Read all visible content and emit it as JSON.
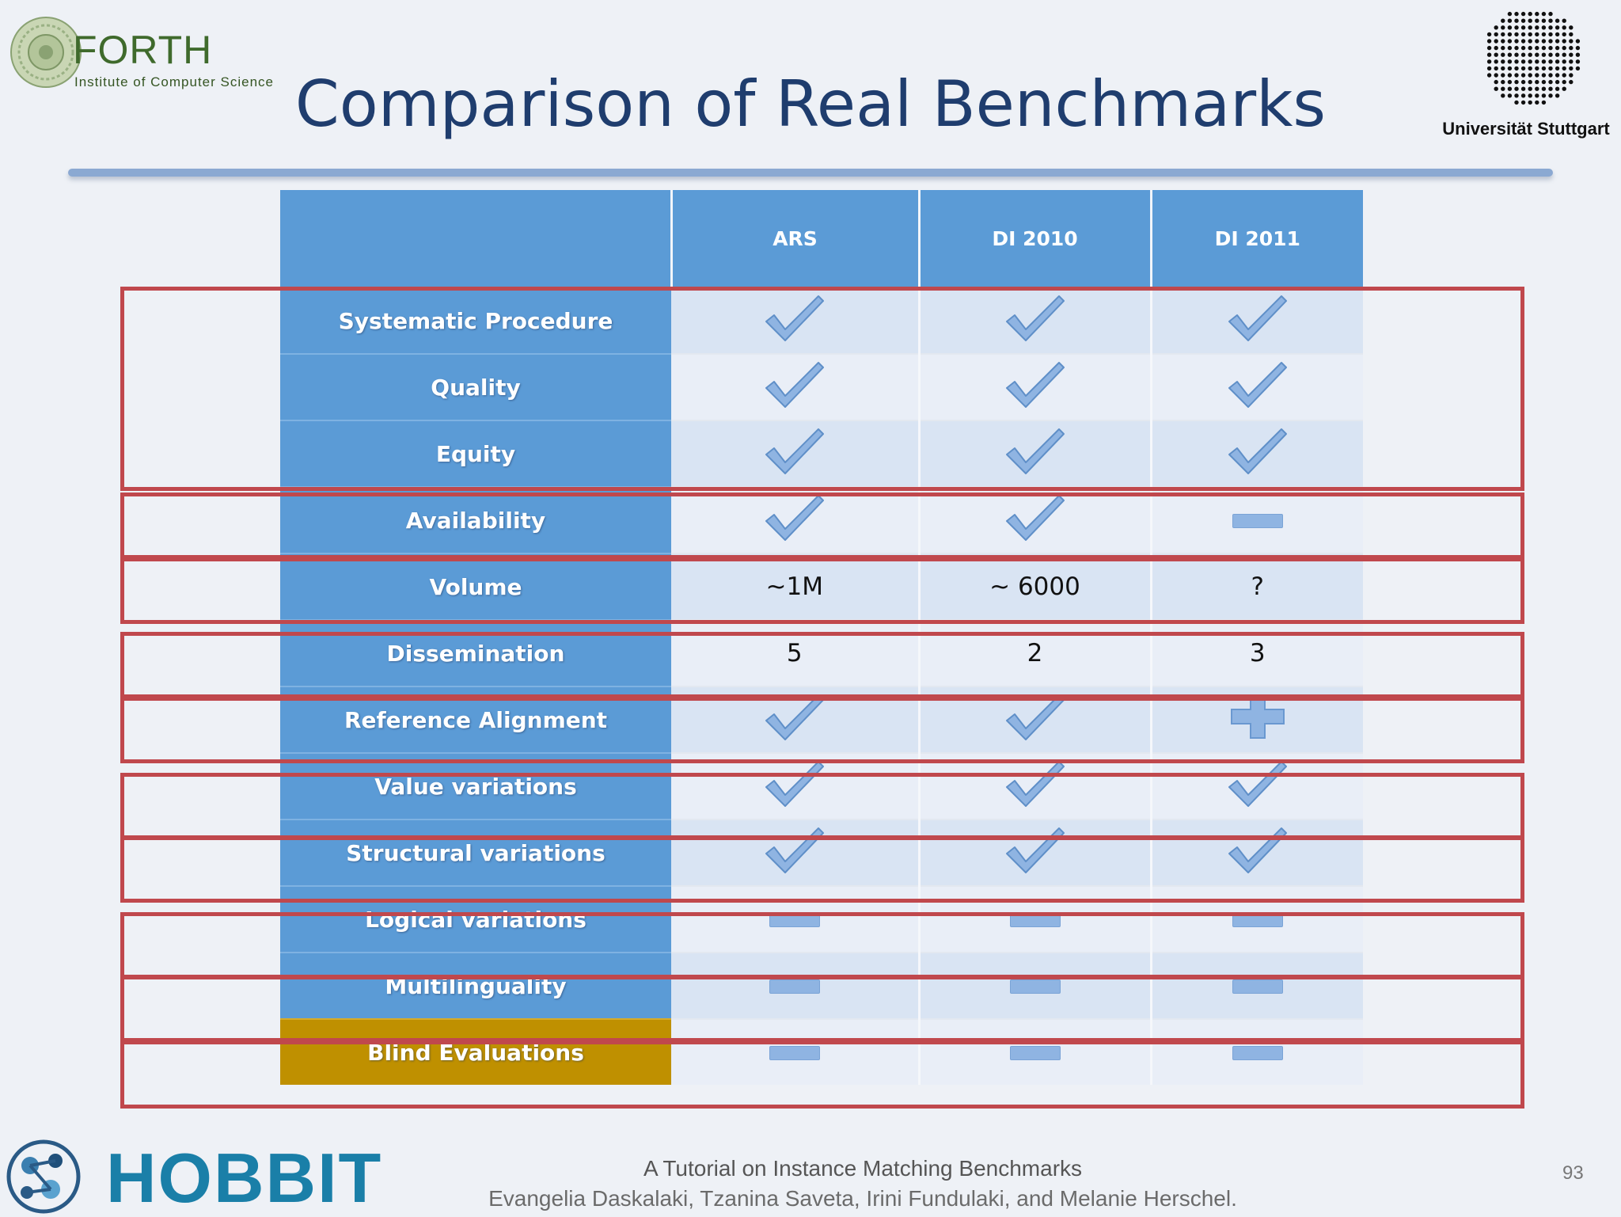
{
  "header": {
    "forth_logo": {
      "name": "FORTH",
      "subtitle": "Institute of Computer Science"
    },
    "title": "Comparison of Real Benchmarks",
    "uni_logo": {
      "name": "Universität Stuttgart"
    }
  },
  "table": {
    "columns": [
      "",
      "ARS",
      "DI 2010",
      "DI 2011"
    ],
    "rows": [
      {
        "label": "Systematic Procedure",
        "values": [
          "check",
          "check",
          "check"
        ]
      },
      {
        "label": "Quality",
        "values": [
          "check",
          "check",
          "check"
        ]
      },
      {
        "label": "Equity",
        "values": [
          "check",
          "check",
          "check"
        ]
      },
      {
        "label": "Availability",
        "values": [
          "check",
          "check",
          "dash"
        ]
      },
      {
        "label": "Volume",
        "values": [
          "~1M",
          "~ 6000",
          "?"
        ]
      },
      {
        "label": "Dissemination",
        "values": [
          "5",
          "2",
          "3"
        ]
      },
      {
        "label": "Reference Alignment",
        "values": [
          "check",
          "check",
          "plus"
        ]
      },
      {
        "label": "Value variations",
        "values": [
          "check",
          "check",
          "check"
        ]
      },
      {
        "label": "Structural  variations",
        "values": [
          "check",
          "check",
          "check"
        ]
      },
      {
        "label": "Logical variations",
        "values": [
          "dash",
          "dash",
          "dash"
        ]
      },
      {
        "label": "Multilinguality",
        "values": [
          "dash",
          "dash",
          "dash"
        ]
      },
      {
        "label": "Blind Evaluations",
        "values": [
          "dash",
          "dash",
          "dash"
        ]
      }
    ],
    "highlight_color": "#c0484d",
    "label_color": "#5b9bd6",
    "accent_row_color": "#bf9000"
  },
  "footer": {
    "logo": "HOBBIT",
    "line1": "A Tutorial on Instance Matching Benchmarks",
    "line2": "Evangelia Daskalaki, Tzanina Saveta, Irini Fundulaki, and Melanie Herschel.",
    "page_number": "93"
  }
}
